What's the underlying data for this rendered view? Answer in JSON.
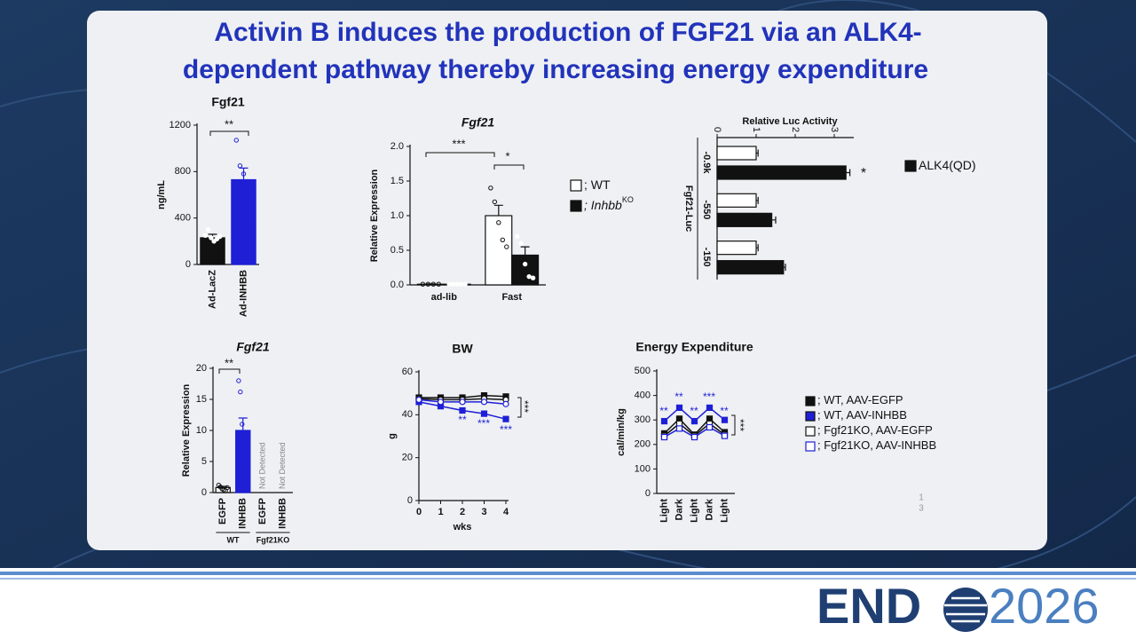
{
  "title": [
    "Activin B induces the production of FGF21 via an ALK4-",
    "dependent pathway thereby increasing energy expenditure"
  ],
  "page_number": [
    "1",
    "3"
  ],
  "logo": {
    "left": "END",
    "right": "2026"
  },
  "chart_data": [
    {
      "type": "bar",
      "title": "Fgf21",
      "ylabel": "ng/mL",
      "categories": [
        "Ad-LacZ",
        "Ad-INHBB"
      ],
      "values": [
        230,
        730
      ],
      "errors": [
        30,
        100
      ],
      "colors": [
        "#111111",
        "#1f1fd6"
      ],
      "points": [
        [
          250,
          300,
          230,
          200,
          220,
          240
        ],
        [
          1070,
          850,
          780,
          600,
          280
        ]
      ],
      "ylim": [
        0,
        1200
      ],
      "yticks": [
        0,
        400,
        800,
        1200
      ],
      "annotations": [
        "**"
      ]
    },
    {
      "type": "bar",
      "title": "Fgf21",
      "ylabel": "Relative Expression",
      "categories": [
        "ad-lib",
        "Fast"
      ],
      "series": [
        {
          "name": "; WT",
          "color": "#ffffff",
          "values": [
            0.01,
            1.0
          ],
          "errors": [
            0.005,
            0.15
          ],
          "points": [
            [
              0.01,
              0.01,
              0.01,
              0.01
            ],
            [
              1.4,
              1.2,
              0.9,
              0.65,
              0.55
            ]
          ]
        },
        {
          "name": "; Inhbb",
          "superscript": "KO",
          "color": "#111111",
          "values": [
            0.01,
            0.43
          ],
          "errors": [
            0.005,
            0.12
          ],
          "points": [
            [
              0.01,
              0.01,
              0.01,
              0.01,
              0.01
            ],
            [
              0.7,
              0.6,
              0.3,
              0.12,
              0.1
            ]
          ]
        }
      ],
      "ylim": [
        0,
        2.0
      ],
      "yticks": [
        {
          "value": 0,
          "label": "0.0"
        },
        {
          "value": 0.5,
          "label": "0.5"
        },
        {
          "value": 1,
          "label": "1.0"
        },
        {
          "value": 1.5,
          "label": "1.5"
        },
        {
          "value": 2,
          "label": "2.0"
        }
      ],
      "annotations": [
        "***",
        "*"
      ]
    },
    {
      "type": "hbar",
      "title": "Relative Luc Activity",
      "ylabel": "Fgf21-Luc",
      "categories": [
        "-0.9k",
        "-550",
        "-150"
      ],
      "series": [
        {
          "color": "#ffffff",
          "values": [
            1,
            1,
            1
          ],
          "errors": [
            0.05,
            0.05,
            0.05
          ]
        },
        {
          "name": "ALK4(QD)",
          "color": "#111111",
          "values": [
            3.3,
            1.4,
            1.7
          ],
          "errors": [
            0.1,
            0.1,
            0.05
          ]
        }
      ],
      "xlim": [
        0,
        3.5
      ],
      "xticks": [
        0,
        1,
        2,
        3
      ],
      "annotations": [
        "*"
      ]
    },
    {
      "type": "bar",
      "title": "Fgf21",
      "ylabel": "Relative Expression",
      "categories": [
        "EGFP",
        "INHBB",
        "EGFP",
        "INHBB"
      ],
      "values": [
        0.8,
        10,
        null,
        null
      ],
      "value_labels": [
        null,
        null,
        "Not Detected",
        "Not Detected"
      ],
      "errors": [
        0.2,
        2,
        null,
        null
      ],
      "colors": [
        "#ffffff",
        "#1f1fd6",
        "#ffffff",
        "#1f1fd6"
      ],
      "points": [
        [
          1.2,
          0.9,
          0.6,
          0.4,
          0.3,
          0.8
        ],
        [
          18,
          16.2,
          11,
          7,
          5,
          4.5
        ],
        [],
        []
      ],
      "groups": [
        "WT",
        "Fgf21KO"
      ],
      "ylim": [
        0,
        20
      ],
      "yticks": [
        0,
        5,
        10,
        15,
        20
      ],
      "annotations": [
        "**"
      ]
    },
    {
      "type": "line",
      "title": "BW",
      "xlabel": "wks",
      "ylabel": "g",
      "x": [
        0,
        1,
        2,
        3,
        4
      ],
      "xlim": [
        0,
        4
      ],
      "xticks": [
        0,
        1,
        2,
        3,
        4
      ],
      "series": [
        {
          "color": "#111111",
          "fill": "#111111",
          "marker": "square",
          "values": [
            48,
            48,
            48,
            49,
            48.5
          ]
        },
        {
          "color": "#1f1fd6",
          "fill": "#1f1fd6",
          "marker": "square",
          "values": [
            46,
            44,
            42,
            40.5,
            38
          ]
        },
        {
          "color": "#111111",
          "fill": "#ffffff",
          "marker": "circle",
          "values": [
            47.5,
            47,
            47,
            47.5,
            47
          ]
        },
        {
          "color": "#1f1fd6",
          "fill": "#ffffff",
          "marker": "circle",
          "values": [
            47,
            46,
            46,
            46,
            45
          ]
        }
      ],
      "ylim": [
        0,
        60
      ],
      "yticks": [
        0,
        20,
        40,
        60
      ],
      "annotations": [
        "**",
        "***",
        "***",
        "***"
      ]
    },
    {
      "type": "line",
      "title": "Energy Expenditure",
      "ylabel": "cal/min/kg",
      "categories": [
        "Light",
        "Dark",
        "Light",
        "Dark",
        "Light"
      ],
      "series": [
        {
          "name": "; WT, AAV-EGFP",
          "color": "#111111",
          "fill": "#111111",
          "marker": "square",
          "values": [
            245,
            305,
            240,
            305,
            250
          ]
        },
        {
          "name": "; WT, AAV-INHBB",
          "color": "#1f1fd6",
          "fill": "#1f1fd6",
          "marker": "square",
          "values": [
            295,
            350,
            295,
            350,
            300
          ]
        },
        {
          "name": "; Fgf21KO, AAV-EGFP",
          "color": "#111111",
          "fill": "#ffffff",
          "marker": "square",
          "values": [
            235,
            285,
            235,
            285,
            240
          ]
        },
        {
          "name": "; Fgf21KO, AAV-INHBB",
          "color": "#1f1fd6",
          "fill": "#ffffff",
          "marker": "square",
          "values": [
            230,
            265,
            230,
            270,
            235
          ]
        }
      ],
      "ylim": [
        0,
        500
      ],
      "yticks": [
        0,
        100,
        200,
        300,
        400,
        500
      ],
      "annotations": [
        "**",
        "**",
        "**",
        "***",
        "**",
        "***"
      ]
    }
  ]
}
